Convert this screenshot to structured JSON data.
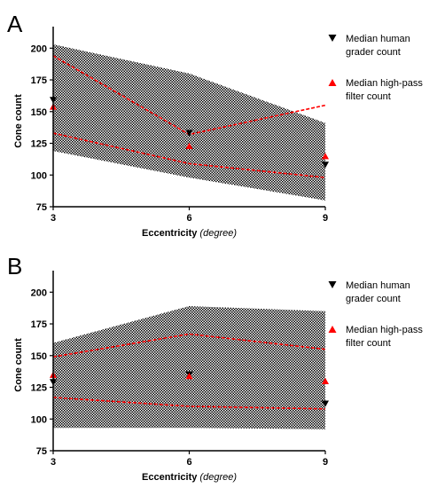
{
  "chart_data": [
    {
      "panel": "A",
      "type": "area",
      "x": [
        3,
        6,
        9
      ],
      "xlabel_main": "Eccentricity",
      "xlabel_unit": "(degree)",
      "ylabel": "Cone count",
      "xlim": [
        3,
        9
      ],
      "ylim": [
        75,
        210
      ],
      "xticks": [
        "3",
        "6",
        "9"
      ],
      "yticks": [
        "75",
        "100",
        "125",
        "150",
        "175",
        "200"
      ],
      "band": {
        "upper": [
          203,
          180,
          141
        ],
        "lower": [
          119,
          98,
          80
        ]
      },
      "red_lines": [
        {
          "style": "dashed",
          "values": [
            194,
            132,
            155
          ]
        },
        {
          "style": "dashed",
          "values": [
            133,
            109,
            98
          ]
        }
      ],
      "series": [
        {
          "name": "Median human grader count",
          "marker": "down-triangle",
          "color": "#000000",
          "values": [
            159,
            133,
            108
          ]
        },
        {
          "name": "Median high-pass filter count",
          "marker": "up-triangle",
          "color": "#ff0000",
          "values": [
            154,
            123,
            115
          ]
        }
      ],
      "legend": [
        {
          "marker": "down-triangle",
          "color": "#000000",
          "lines": [
            "Median human",
            "grader count"
          ]
        },
        {
          "marker": "up-triangle",
          "color": "#ff0000",
          "lines": [
            "Median high-pass",
            "filter count"
          ]
        }
      ]
    },
    {
      "panel": "B",
      "type": "area",
      "x": [
        3,
        6,
        9
      ],
      "xlabel_main": "Eccentricity",
      "xlabel_unit": "(degree)",
      "ylabel": "Cone count",
      "xlim": [
        3,
        9
      ],
      "ylim": [
        75,
        210
      ],
      "xticks": [
        "3",
        "6",
        "9"
      ],
      "yticks": [
        "75",
        "100",
        "125",
        "150",
        "175",
        "200"
      ],
      "band": {
        "upper": [
          160,
          189,
          185
        ],
        "lower": [
          93,
          93,
          92
        ]
      },
      "red_lines": [
        {
          "style": "dashed",
          "values": [
            149,
            167,
            155
          ]
        },
        {
          "style": "dashed",
          "values": [
            117,
            110,
            108
          ]
        }
      ],
      "series": [
        {
          "name": "Median human grader count",
          "marker": "down-triangle",
          "color": "#000000",
          "values": [
            129,
            135,
            112
          ]
        },
        {
          "name": "Median high-pass filter count",
          "marker": "up-triangle",
          "color": "#ff0000",
          "values": [
            135,
            134,
            130
          ]
        }
      ],
      "legend": [
        {
          "marker": "down-triangle",
          "color": "#000000",
          "lines": [
            "Median human",
            "grader count"
          ]
        },
        {
          "marker": "up-triangle",
          "color": "#ff0000",
          "lines": [
            "Median high-pass",
            "filter count"
          ]
        }
      ]
    }
  ],
  "colors": {
    "band": "#000000",
    "red": "#ff0000",
    "axis": "#000000"
  }
}
